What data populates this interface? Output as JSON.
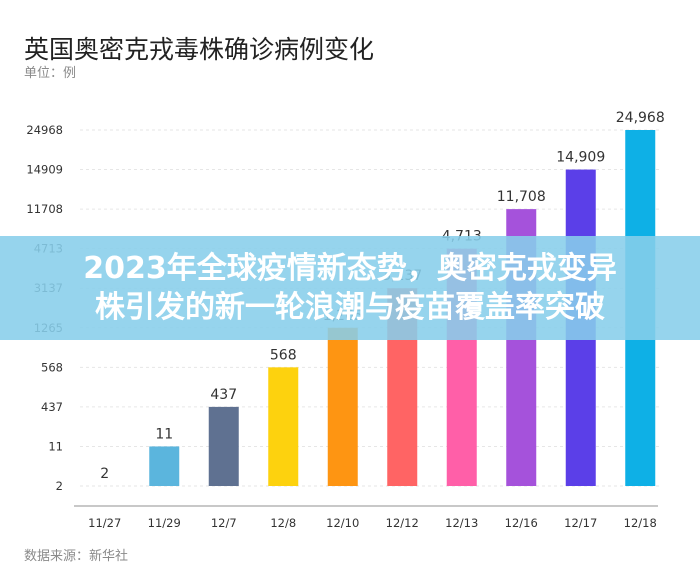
{
  "chart_data": {
    "type": "bar",
    "title": "英国奥密克戎毒株确诊病例变化",
    "unit": "单位：例",
    "source": "数据来源：新华社",
    "xlabel": "",
    "ylabel": "",
    "categories": [
      "11/27",
      "11/29",
      "12/7",
      "12/8",
      "12/10",
      "12/12",
      "12/13",
      "12/16",
      "12/17",
      "12/18"
    ],
    "values": [
      2,
      11,
      437,
      568,
      1265,
      3137,
      4713,
      11708,
      14909,
      24968
    ],
    "data_labels": [
      "2",
      "11",
      "437",
      "568",
      "1,265",
      "3,137",
      "4,713",
      "11,708",
      "14,909",
      "24,968"
    ],
    "y_ticks": [
      "2",
      "11",
      "437",
      "568",
      "1265",
      "3137",
      "4713",
      "11708",
      "14909",
      "24968"
    ],
    "y_scale": "categorical (ticks equally spaced at each value)",
    "colors": [
      "#5BB5DD",
      "#5BB5DD",
      "#5F7191",
      "#FDD20E",
      "#FE9512",
      "#FF6464",
      "#FF5FA8",
      "#A552DB",
      "#5B3FE8",
      "#0EB0E6"
    ],
    "grid": true,
    "legend": "none"
  },
  "banner": {
    "line1": "2023年全球疫情新态势，奥密克戎变异",
    "line2": "株引发的新一轮浪潮与疫苗覆盖率突破"
  }
}
